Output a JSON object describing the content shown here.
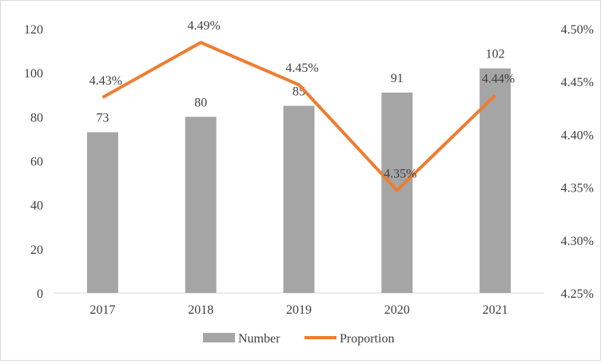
{
  "chart_data": {
    "type": "bar",
    "categories": [
      "2017",
      "2018",
      "2019",
      "2020",
      "2021"
    ],
    "series": [
      {
        "name": "Number",
        "type": "bar",
        "axis": "left",
        "values": [
          73,
          80,
          85,
          91,
          102
        ],
        "labels": [
          "73",
          "80",
          "85",
          "91",
          "102"
        ]
      },
      {
        "name": "Proportion",
        "type": "line",
        "axis": "right",
        "values": [
          4.435,
          4.487,
          4.447,
          4.347,
          4.437
        ],
        "labels": [
          "4.43%",
          "4.49%",
          "4.45%",
          "4.35%",
          "4.44%"
        ]
      }
    ],
    "left_axis": {
      "ylim": [
        0,
        120
      ],
      "ticks": [
        "0",
        "20",
        "40",
        "60",
        "80",
        "100",
        "120"
      ]
    },
    "right_axis": {
      "ylim": [
        4.25,
        4.5
      ],
      "ticks": [
        "4.25%",
        "4.30%",
        "4.35%",
        "4.40%",
        "4.45%",
        "4.50%"
      ]
    },
    "grid": false,
    "legend_position": "bottom",
    "colors": {
      "bar": "#a5a5a5",
      "line": "#ed7d31",
      "text": "#404040",
      "axis": "#d9d9d9"
    }
  }
}
